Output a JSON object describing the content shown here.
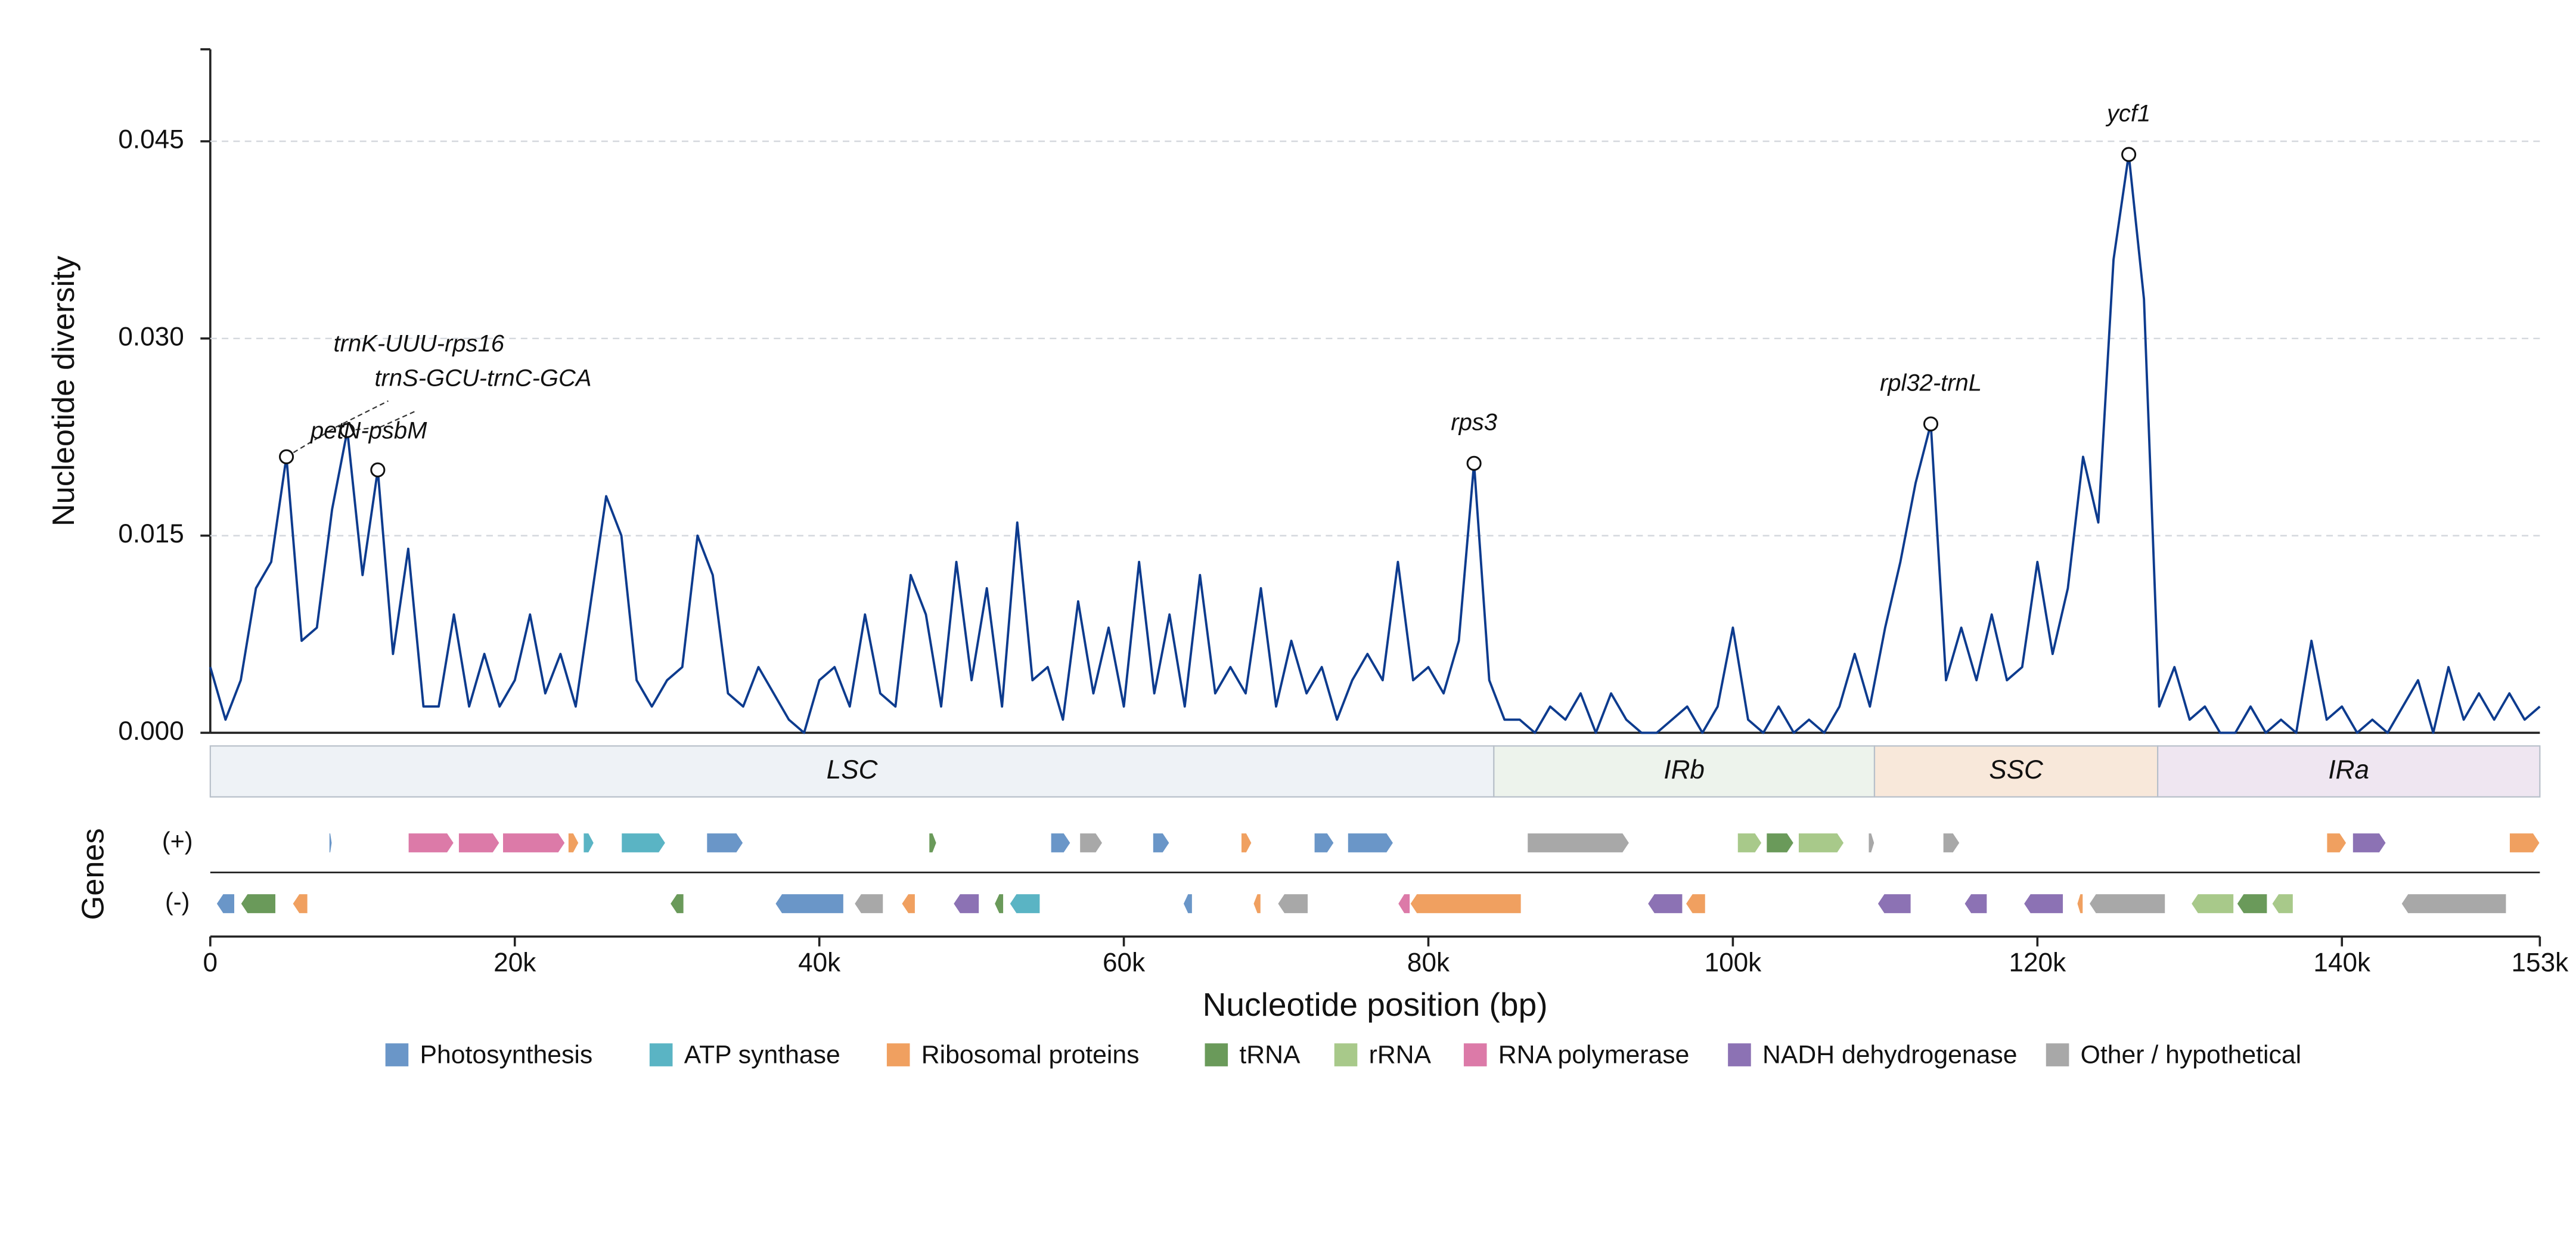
{
  "chart_data": {
    "type": "line",
    "y_label": "Nucleotide diversity",
    "x_label": "Nucleotide position (bp)",
    "xlim": [
      0,
      153000
    ],
    "ylim": [
      0,
      0.052
    ],
    "xticks": [
      0,
      {
        "value": 20000,
        "label": "20k"
      },
      {
        "value": 40000,
        "label": "40k"
      },
      {
        "value": 60000,
        "label": "60k"
      },
      {
        "value": 80000,
        "label": "80k"
      },
      {
        "value": 100000,
        "label": "100k"
      },
      {
        "value": 120000,
        "label": "120k"
      },
      {
        "value": 140000,
        "label": "140k"
      },
      {
        "value": 153000,
        "label": "153k"
      }
    ],
    "yticks": [
      {
        "value": 0,
        "label": "0.000"
      },
      {
        "value": 0.015,
        "label": "0.015"
      },
      {
        "value": 0.03,
        "label": "0.030"
      },
      {
        "value": 0.045,
        "label": "0.045"
      }
    ],
    "grid": true,
    "series": [
      {
        "color": "#0d3b8e",
        "x": [
          0,
          1000,
          2000,
          3000,
          4000,
          5000,
          6000,
          7000,
          8000,
          9000,
          10000,
          11000,
          12000,
          13000,
          14000,
          15000,
          16000,
          17000,
          18000,
          19000,
          20000,
          21000,
          22000,
          23000,
          24000,
          25000,
          26000,
          27000,
          28000,
          29000,
          30000,
          31000,
          32000,
          33000,
          34000,
          35000,
          36000,
          37000,
          38000,
          39000,
          40000,
          41000,
          42000,
          43000,
          44000,
          45000,
          46000,
          47000,
          48000,
          49000,
          50000,
          51000,
          52000,
          53000,
          54000,
          55000,
          56000,
          57000,
          58000,
          59000,
          60000,
          61000,
          62000,
          63000,
          64000,
          65000,
          66000,
          67000,
          68000,
          69000,
          70000,
          71000,
          72000,
          73000,
          74000,
          75000,
          76000,
          77000,
          78000,
          79000,
          80000,
          81000,
          82000,
          83000,
          84000,
          85000,
          86000,
          87000,
          88000,
          89000,
          90000,
          91000,
          92000,
          93000,
          94000,
          95000,
          96000,
          97000,
          98000,
          99000,
          100000,
          101000,
          102000,
          103000,
          104000,
          105000,
          106000,
          107000,
          108000,
          109000,
          110000,
          111000,
          112000,
          113000,
          114000,
          115000,
          116000,
          117000,
          118000,
          119000,
          120000,
          121000,
          122000,
          123000,
          124000,
          125000,
          126000,
          127000,
          128000,
          129000,
          130000,
          131000,
          132000,
          133000,
          134000,
          135000,
          136000,
          137000,
          138000,
          139000,
          140000,
          141000,
          142000,
          143000,
          144000,
          145000,
          146000,
          147000,
          148000,
          149000,
          150000,
          151000,
          152000,
          153000
        ],
        "values": [
          0.005,
          0.001,
          0.004,
          0.011,
          0.013,
          0.021,
          0.007,
          0.008,
          0.017,
          0.023,
          0.012,
          0.02,
          0.006,
          0.014,
          0.002,
          0.002,
          0.009,
          0.002,
          0.006,
          0.002,
          0.004,
          0.009,
          0.003,
          0.006,
          0.002,
          0.01,
          0.018,
          0.015,
          0.004,
          0.002,
          0.004,
          0.005,
          0.015,
          0.012,
          0.003,
          0.002,
          0.005,
          0.003,
          0.001,
          0,
          0.004,
          0.005,
          0.002,
          0.009,
          0.003,
          0.002,
          0.012,
          0.009,
          0.002,
          0.013,
          0.004,
          0.011,
          0.002,
          0.016,
          0.004,
          0.005,
          0.001,
          0.01,
          0.003,
          0.008,
          0.002,
          0.013,
          0.003,
          0.009,
          0.002,
          0.012,
          0.003,
          0.005,
          0.003,
          0.011,
          0.002,
          0.007,
          0.003,
          0.005,
          0.001,
          0.004,
          0.006,
          0.004,
          0.013,
          0.004,
          0.005,
          0.003,
          0.007,
          0.0205,
          0.004,
          0.001,
          0.001,
          0,
          0.002,
          0.001,
          0.003,
          0,
          0.003,
          0.001,
          0,
          0,
          0.001,
          0.002,
          0,
          0.002,
          0.008,
          0.001,
          0,
          0.002,
          0,
          0.001,
          0,
          0.002,
          0.006,
          0.002,
          0.008,
          0.013,
          0.019,
          0.0235,
          0.004,
          0.008,
          0.004,
          0.009,
          0.004,
          0.005,
          0.013,
          0.006,
          0.011,
          0.021,
          0.016,
          0.036,
          0.044,
          0.033,
          0.002,
          0.005,
          0.001,
          0.002,
          0,
          0,
          0.002,
          0,
          0.001,
          0,
          0.007,
          0.001,
          0.002,
          0,
          0.001,
          0,
          0.002,
          0.004,
          0,
          0.005,
          0.001,
          0.003,
          0.001,
          0.003,
          0.001,
          0.002
        ]
      }
    ],
    "annotations": [
      {
        "text": "trnK-UUU-rps16",
        "x": 5000,
        "y": 0.021
      },
      {
        "text": "trnS-GCU-trnC-GCA",
        "x": 9000,
        "y": 0.023
      },
      {
        "text": "petN-psbM",
        "x": 11000,
        "y": 0.02
      },
      {
        "text": "rps3",
        "x": 83000,
        "y": 0.0205
      },
      {
        "text": "rpl32-trnL",
        "x": 113000,
        "y": 0.0235
      },
      {
        "text": "ycf1",
        "x": 126000,
        "y": 0.044
      }
    ],
    "regions": [
      {
        "name": "LSC",
        "start": 0,
        "end": 84300,
        "color": "#eef2f6"
      },
      {
        "name": "IRb",
        "start": 84300,
        "end": 109300,
        "color": "#edf3ec"
      },
      {
        "name": "SSC",
        "start": 109300,
        "end": 127900,
        "color": "#f8e8da"
      },
      {
        "name": "IRa",
        "start": 127900,
        "end": 153000,
        "color": "#efe6f1"
      }
    ],
    "gene_track": {
      "title": "Genes",
      "strand_labels": [
        "(+)",
        "(-)"
      ]
    },
    "gene_groups": [
      {
        "name": "Photosynthesis",
        "color": "#6a96c8",
        "genes": [
          [
            7800,
            8000,
            1
          ],
          [
            32600,
            35000,
            1
          ],
          [
            55200,
            56500,
            1
          ],
          [
            61900,
            63000,
            1
          ],
          [
            72500,
            73800,
            1
          ],
          [
            74700,
            77700,
            1
          ],
          [
            400,
            1600,
            -1
          ],
          [
            37100,
            41600,
            -1
          ],
          [
            63900,
            64500,
            -1
          ]
        ]
      },
      {
        "name": "ATP synthase",
        "color": "#5ab4c4",
        "genes": [
          [
            24500,
            25200,
            1
          ],
          [
            27000,
            29900,
            1
          ],
          [
            52500,
            54500,
            -1
          ]
        ]
      },
      {
        "name": "Ribosomal proteins",
        "color": "#f0a060",
        "genes": [
          [
            23500,
            24200,
            1
          ],
          [
            67700,
            68400,
            1
          ],
          [
            139000,
            140300,
            1
          ],
          [
            151000,
            153000,
            1
          ],
          [
            5400,
            6400,
            -1
          ],
          [
            45400,
            46300,
            -1
          ],
          [
            68500,
            69000,
            -1
          ],
          [
            78800,
            86100,
            -1
          ],
          [
            96900,
            98200,
            -1
          ],
          [
            122600,
            123000,
            -1
          ]
        ]
      },
      {
        "name": "tRNA",
        "color": "#6a9a5a",
        "genes": [
          [
            47200,
            47700,
            1
          ],
          [
            102200,
            104000,
            1
          ],
          [
            2000,
            4300,
            -1
          ],
          [
            30200,
            31100,
            -1
          ],
          [
            51500,
            52100,
            -1
          ],
          [
            133100,
            135100,
            -1
          ]
        ]
      },
      {
        "name": "rRNA",
        "color": "#a8c98a",
        "genes": [
          [
            100300,
            101900,
            1
          ],
          [
            104300,
            107300,
            1
          ],
          [
            130100,
            132900,
            -1
          ],
          [
            135400,
            136800,
            -1
          ]
        ]
      },
      {
        "name": "RNA polymerase",
        "color": "#dc7aa8",
        "genes": [
          [
            13000,
            16000,
            1
          ],
          [
            16300,
            19000,
            1
          ],
          [
            19200,
            23300,
            1
          ],
          [
            78000,
            78800,
            -1
          ]
        ]
      },
      {
        "name": "NADH dehydrogenase",
        "color": "#8c72b4",
        "genes": [
          [
            140700,
            142900,
            1
          ],
          [
            48800,
            50500,
            -1
          ],
          [
            94400,
            96700,
            -1
          ],
          [
            109500,
            111700,
            -1
          ],
          [
            115200,
            116700,
            -1
          ],
          [
            119100,
            121700,
            -1
          ]
        ]
      },
      {
        "name": "Other / hypothetical",
        "color": "#a8a8a8",
        "genes": [
          [
            57100,
            58600,
            1
          ],
          [
            86500,
            93200,
            1
          ],
          [
            108900,
            109300,
            1
          ],
          [
            113800,
            114900,
            1
          ],
          [
            42300,
            44200,
            -1
          ],
          [
            70100,
            72100,
            -1
          ],
          [
            123400,
            128400,
            -1
          ],
          [
            143900,
            150800,
            -1
          ]
        ]
      }
    ]
  }
}
